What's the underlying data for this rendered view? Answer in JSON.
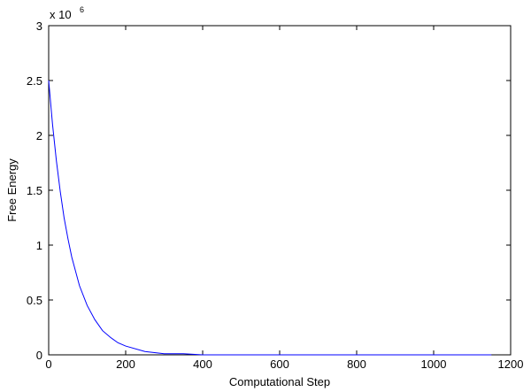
{
  "chart_data": {
    "type": "line",
    "x_label": "Computational Step",
    "y_label": "Free Energy",
    "y_multiplier": {
      "base": "x 10",
      "power": "6"
    },
    "x": [
      0,
      10,
      20,
      30,
      40,
      50,
      60,
      80,
      100,
      120,
      140,
      160,
      180,
      200,
      250,
      300,
      350,
      400,
      500,
      600,
      800,
      1000,
      1150
    ],
    "series": [
      {
        "color": "#0000ff",
        "values": [
          2.5,
          2.1,
          1.77,
          1.49,
          1.25,
          1.06,
          0.89,
          0.63,
          0.45,
          0.32,
          0.22,
          0.16,
          0.11,
          0.08,
          0.03,
          0.01,
          0.01,
          0,
          0,
          0,
          0,
          0,
          0
        ]
      }
    ],
    "xlim": [
      0,
      1200
    ],
    "xticks": [
      0,
      200,
      400,
      600,
      800,
      1000,
      1200
    ],
    "ylim": [
      0,
      3
    ],
    "yticks": [
      0,
      0.5,
      1,
      1.5,
      2,
      2.5,
      3
    ]
  }
}
